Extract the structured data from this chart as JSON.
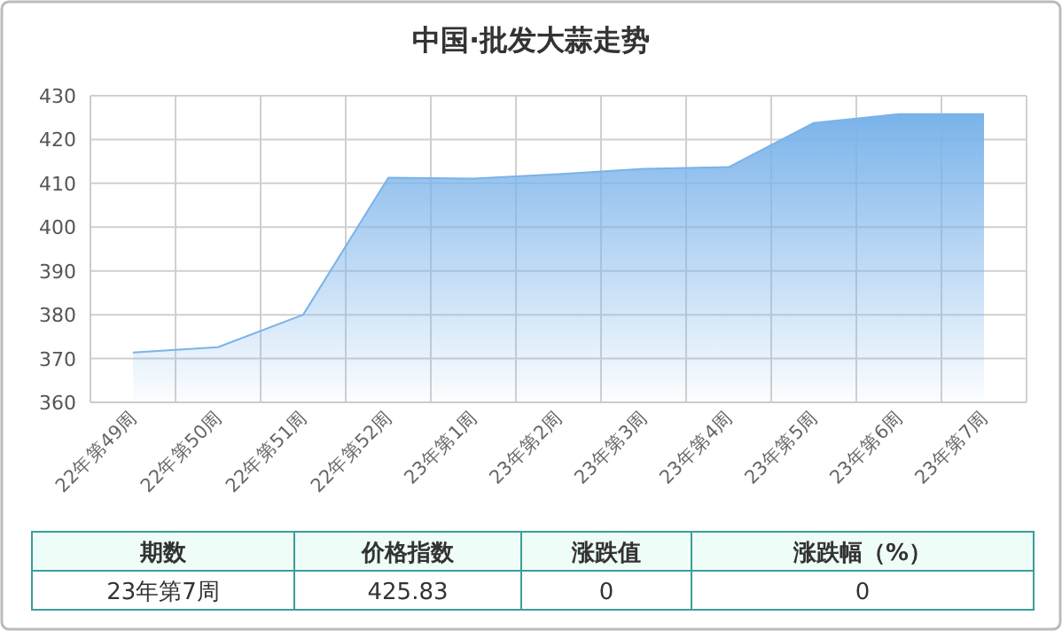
{
  "chart_data": {
    "type": "area",
    "title": "中国·批发大蒜走势",
    "categories": [
      "22年第49周",
      "22年第50周",
      "22年第51周",
      "22年第52周",
      "23年第1周",
      "23年第2周",
      "23年第3周",
      "23年第4周",
      "23年第5周",
      "23年第6周",
      "23年第7周"
    ],
    "series": [
      {
        "color": "#7ab3ea",
        "values": [
          371.4,
          372.6,
          380.0,
          411.3,
          411.1,
          412.1,
          413.3,
          413.7,
          423.8,
          425.8,
          425.8
        ]
      }
    ],
    "ylim": [
      360,
      430
    ],
    "yticks": [
      360,
      370,
      380,
      390,
      400,
      410,
      420,
      430
    ],
    "grid": true,
    "annotations": [
      "期数",
      "价格指数",
      "涨跌值",
      "涨跌幅（%）",
      "23年第7周",
      "425.83",
      "0",
      "0"
    ]
  }
}
